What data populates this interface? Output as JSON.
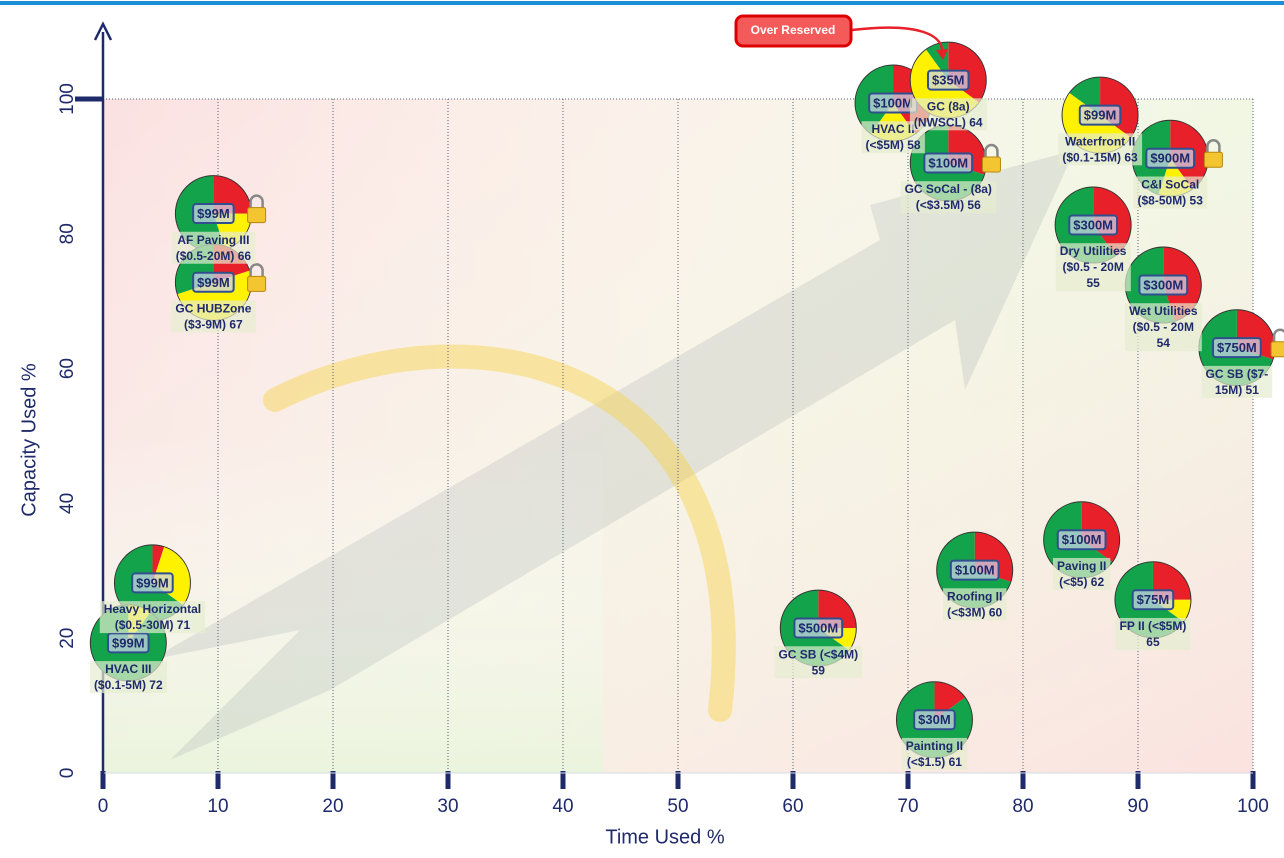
{
  "chart_data": {
    "type": "scatter",
    "xlabel": "Time Used %",
    "ylabel": "Capacity Used %",
    "xlim": [
      0,
      100
    ],
    "ylim": [
      0,
      100
    ],
    "xticks": [
      0,
      10,
      20,
      30,
      40,
      50,
      60,
      70,
      80,
      90,
      100
    ],
    "yticks": [
      0,
      20,
      40,
      60,
      80,
      100
    ],
    "slice_colors": [
      "#e8202a",
      "#fff200",
      "#13a34a"
    ],
    "annotation": "Over Reserved",
    "points": [
      {
        "amount": "$99M",
        "label_lines": [
          "AF Paving III",
          "($0.5-20M) 66"
        ],
        "x": 9.6,
        "y": 83,
        "slices": [
          25,
          20,
          55
        ],
        "locked": true
      },
      {
        "amount": "$99M",
        "label_lines": [
          "GC HUBZone",
          "($3-9M) 67"
        ],
        "x": 9.6,
        "y": 72.8,
        "slices": [
          20,
          50,
          30
        ],
        "locked": true
      },
      {
        "amount": "$99M",
        "label_lines": [
          "Heavy Horizontal",
          "($0.5-30M) 71"
        ],
        "x": 4.3,
        "y": 28.2,
        "slices": [
          5,
          30,
          65
        ],
        "locked": false
      },
      {
        "amount": "$99M",
        "label_lines": [
          "HVAC III",
          "($0.1-5M) 72"
        ],
        "x": 2.2,
        "y": 19.3,
        "slices": [
          0,
          10,
          90
        ],
        "locked": false
      },
      {
        "amount": "$500M",
        "label_lines": [
          "GC SB (<$4M)",
          "59"
        ],
        "x": 62.2,
        "y": 21.5,
        "slices": [
          25,
          10,
          65
        ],
        "locked": false
      },
      {
        "amount": "$30M",
        "label_lines": [
          "Painting II",
          "(<$1.5) 61"
        ],
        "x": 72.3,
        "y": 7.9,
        "slices": [
          15,
          0,
          85
        ],
        "locked": false
      },
      {
        "amount": "$100M",
        "label_lines": [
          "Roofing II",
          "(<$3M) 60"
        ],
        "x": 75.8,
        "y": 30.1,
        "slices": [
          30,
          0,
          70
        ],
        "locked": false
      },
      {
        "amount": "$100M",
        "label_lines": [
          "Paving II",
          "(<$5) 62"
        ],
        "x": 85.1,
        "y": 34.6,
        "slices": [
          35,
          0,
          65
        ],
        "locked": false
      },
      {
        "amount": "$75M",
        "label_lines": [
          "FP II (<$5M)",
          "65"
        ],
        "x": 91.3,
        "y": 25.7,
        "slices": [
          25,
          10,
          65
        ],
        "locked": false
      },
      {
        "amount": "$100M",
        "label_lines": [
          "HVAC II",
          "(<$5M) 58"
        ],
        "x": 68.7,
        "y": 99.4,
        "slices": [
          40,
          20,
          40
        ],
        "locked": true
      },
      {
        "amount": "$35M",
        "label_lines": [
          "GC (8a)",
          "(NWSCL) 64"
        ],
        "x": 73.5,
        "y": 102.8,
        "slices": [
          35,
          55,
          10
        ],
        "locked": false
      },
      {
        "amount": "$100M",
        "label_lines": [
          "GC SoCal - (8a)",
          "(<$3.5M) 56"
        ],
        "x": 73.5,
        "y": 90.5,
        "slices": [
          30,
          0,
          70
        ],
        "locked": true
      },
      {
        "amount": "$99M",
        "label_lines": [
          "Waterfront II",
          "($0.1-15M) 63"
        ],
        "x": 86.7,
        "y": 97.6,
        "slices": [
          35,
          50,
          15
        ],
        "locked": false
      },
      {
        "amount": "$900M",
        "label_lines": [
          "C&I SoCal",
          "($8-50M) 53"
        ],
        "x": 92.8,
        "y": 91.2,
        "slices": [
          40,
          15,
          45
        ],
        "locked": true
      },
      {
        "amount": "$300M",
        "label_lines": [
          "Dry Utilities",
          "($0.5 - 20M",
          "55"
        ],
        "x": 86.1,
        "y": 81.3,
        "slices": [
          40,
          0,
          60
        ],
        "locked": false
      },
      {
        "amount": "$300M",
        "label_lines": [
          "Wet Utilities",
          "($0.5 - 20M",
          "54"
        ],
        "x": 92.2,
        "y": 72.4,
        "slices": [
          45,
          0,
          55
        ],
        "locked": false
      },
      {
        "amount": "$750M",
        "label_lines": [
          "GC SB ($7-",
          "15M) 51"
        ],
        "x": 98.6,
        "y": 63.1,
        "slices": [
          30,
          0,
          70
        ],
        "locked": true
      }
    ]
  }
}
